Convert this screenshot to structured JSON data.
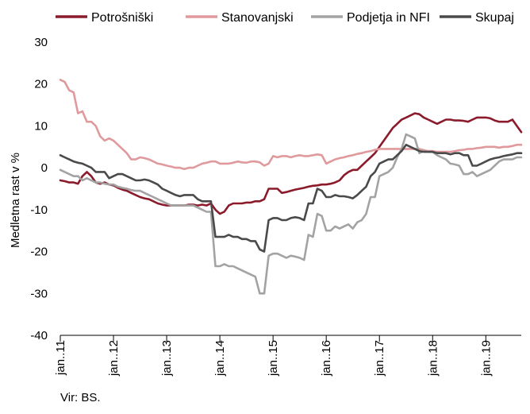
{
  "chart_data": {
    "type": "line",
    "xlabel": "",
    "ylabel": "Medletna rast v %",
    "ylim": [
      -40,
      30
    ],
    "yticks": [
      30,
      20,
      10,
      0,
      -10,
      -20,
      -30,
      -40
    ],
    "x_start": "2011-01",
    "x_end": "2019-12",
    "xtick_labels": [
      "jan..11",
      "jan..12",
      "jan..13",
      "jan..14",
      "jan..15",
      "jan..16",
      "jan..17",
      "jan..18",
      "jan..19"
    ],
    "legend_position": "top",
    "source": "Vir: BS.",
    "series": [
      {
        "name": "Potrošniški",
        "color": "#8b1a2b",
        "values": [
          -3.0,
          -3.2,
          -3.5,
          -3.5,
          -3.8,
          -2.0,
          -1.0,
          -2.0,
          -3.5,
          -3.8,
          -3.5,
          -4.0,
          -4.2,
          -4.8,
          -5.2,
          -5.5,
          -6.0,
          -6.5,
          -7.0,
          -7.3,
          -7.5,
          -8.0,
          -8.5,
          -8.8,
          -9.0,
          -9.0,
          -9.0,
          -9.0,
          -9.0,
          -8.8,
          -8.8,
          -9.0,
          -8.8,
          -9.0,
          -8.5,
          -10.0,
          -11.0,
          -10.5,
          -9.0,
          -8.5,
          -8.5,
          -8.5,
          -8.3,
          -8.3,
          -8.0,
          -8.0,
          -7.5,
          -5.0,
          -5.0,
          -5.0,
          -6.0,
          -5.8,
          -5.5,
          -5.2,
          -5.0,
          -4.8,
          -4.5,
          -4.3,
          -4.2,
          -4.0,
          -4.0,
          -3.8,
          -3.5,
          -3.0,
          -1.8,
          -1.0,
          -0.5,
          -0.5,
          0.5,
          1.5,
          2.5,
          3.5,
          5.0,
          6.5,
          8.0,
          9.5,
          10.5,
          11.5,
          12.0,
          12.5,
          13.0,
          12.8,
          12.0,
          11.5,
          11.0,
          10.5,
          11.0,
          11.5,
          11.5,
          11.3,
          11.3,
          11.2,
          11.0,
          11.5,
          12.0,
          12.0,
          12.0,
          11.8,
          11.3,
          11.0,
          11.0,
          11.0,
          11.5,
          10.0,
          8.5
        ]
      },
      {
        "name": "Stanovanjski",
        "color": "#e0999c",
        "values": [
          21.0,
          20.5,
          18.5,
          18.0,
          13.0,
          13.5,
          11.0,
          11.0,
          10.0,
          7.5,
          6.5,
          7.0,
          6.5,
          5.5,
          4.5,
          3.5,
          2.0,
          2.0,
          2.5,
          2.3,
          2.0,
          1.5,
          1.0,
          0.8,
          0.5,
          0.3,
          0.0,
          0.0,
          -0.3,
          0.0,
          0.0,
          0.5,
          1.0,
          1.2,
          1.5,
          1.5,
          1.0,
          1.0,
          1.0,
          1.2,
          1.5,
          1.3,
          1.2,
          1.5,
          1.5,
          1.3,
          0.5,
          1.0,
          2.8,
          2.5,
          2.8,
          2.8,
          2.5,
          2.8,
          3.0,
          2.8,
          2.8,
          3.0,
          3.2,
          3.0,
          1.0,
          1.5,
          2.0,
          2.3,
          2.5,
          2.8,
          3.0,
          3.3,
          3.5,
          3.8,
          4.0,
          4.3,
          4.5,
          4.5,
          4.5,
          4.5,
          4.5,
          4.5,
          4.5,
          4.5,
          4.5,
          4.5,
          4.2,
          4.0,
          4.0,
          3.8,
          3.8,
          3.8,
          3.8,
          4.0,
          4.2,
          4.3,
          4.5,
          4.5,
          4.7,
          4.8,
          5.0,
          5.0,
          5.0,
          4.8,
          5.0,
          5.0,
          5.2,
          5.5,
          5.5
        ]
      },
      {
        "name": "Podjetja in NFI",
        "color": "#a3a3a3",
        "values": [
          -0.5,
          -1.0,
          -1.5,
          -2.0,
          -2.0,
          -3.0,
          -2.5,
          -3.0,
          -3.5,
          -3.5,
          -3.8,
          -4.0,
          -4.0,
          -4.5,
          -4.8,
          -5.0,
          -5.3,
          -5.5,
          -5.5,
          -6.0,
          -6.5,
          -7.0,
          -7.5,
          -8.0,
          -8.5,
          -9.0,
          -9.0,
          -9.0,
          -9.0,
          -9.0,
          -9.0,
          -9.5,
          -10.0,
          -10.5,
          -10.5,
          -23.5,
          -23.5,
          -23.0,
          -23.5,
          -23.5,
          -24.0,
          -24.5,
          -25.0,
          -25.5,
          -26.0,
          -30.0,
          -30.0,
          -21.0,
          -20.5,
          -20.5,
          -21.0,
          -21.5,
          -21.0,
          -21.2,
          -21.5,
          -22.0,
          -16.0,
          -16.5,
          -11.0,
          -11.5,
          -15.0,
          -15.0,
          -14.0,
          -14.5,
          -14.0,
          -13.5,
          -14.5,
          -13.0,
          -12.5,
          -11.0,
          -7.0,
          -7.0,
          -2.0,
          -1.5,
          -1.0,
          0.0,
          2.5,
          4.5,
          8.0,
          7.5,
          7.0,
          3.5,
          4.0,
          3.8,
          3.8,
          3.0,
          2.5,
          2.0,
          1.0,
          0.8,
          0.5,
          -1.5,
          -1.5,
          -1.0,
          -2.0,
          -1.5,
          -1.0,
          -0.5,
          0.5,
          1.5,
          2.0,
          2.0,
          2.0,
          2.5,
          2.5
        ]
      },
      {
        "name": "Skupaj",
        "color": "#4a4a4a",
        "values": [
          3.0,
          2.5,
          2.0,
          1.5,
          1.2,
          1.0,
          0.5,
          0.0,
          -1.0,
          -1.0,
          -1.0,
          -2.5,
          -2.0,
          -1.5,
          -1.5,
          -2.0,
          -2.5,
          -3.0,
          -3.0,
          -2.8,
          -3.0,
          -3.5,
          -4.0,
          -5.0,
          -5.5,
          -6.0,
          -6.5,
          -6.8,
          -6.5,
          -6.5,
          -6.5,
          -7.5,
          -8.0,
          -8.0,
          -8.0,
          -16.5,
          -16.5,
          -16.5,
          -16.0,
          -16.5,
          -16.5,
          -17.0,
          -17.0,
          -17.5,
          -17.5,
          -19.5,
          -20.0,
          -12.5,
          -12.0,
          -12.0,
          -12.5,
          -12.5,
          -12.0,
          -11.8,
          -12.0,
          -12.5,
          -8.5,
          -8.5,
          -5.0,
          -5.5,
          -7.0,
          -7.0,
          -6.5,
          -6.8,
          -6.8,
          -7.0,
          -7.3,
          -6.5,
          -5.5,
          -4.5,
          -2.0,
          -1.0,
          1.0,
          1.5,
          2.0,
          2.0,
          3.0,
          4.0,
          5.5,
          5.0,
          4.5,
          4.0,
          3.8,
          3.8,
          3.8,
          3.5,
          3.5,
          3.5,
          3.2,
          3.5,
          3.5,
          3.0,
          3.0,
          0.5,
          0.5,
          1.0,
          1.5,
          2.0,
          2.3,
          2.5,
          2.8,
          3.0,
          3.2,
          3.5,
          3.5
        ]
      }
    ]
  }
}
